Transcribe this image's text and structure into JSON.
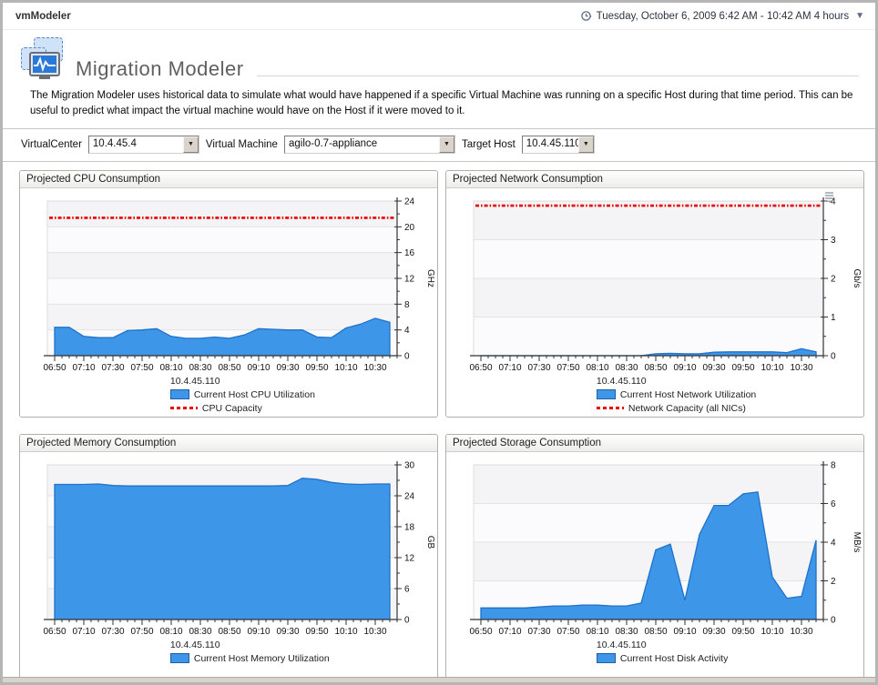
{
  "window": {
    "app_title": "vmModeler",
    "time_range": "Tuesday, October 6, 2009 6:42 AM - 10:42 AM 4 hours"
  },
  "page": {
    "title": "Migration Modeler",
    "description": "The Migration Modeler uses historical data to simulate what would have happened if a specific Virtual Machine was running on a specific Host during that time period. This can be useful to predict what impact the virtual machine would have on the Host if it were moved to it."
  },
  "filters": {
    "virtualcenter": {
      "label": "VirtualCenter",
      "value": "10.4.45.4"
    },
    "virtual_machine": {
      "label": "Virtual Machine",
      "value": "agilo-0.7-appliance"
    },
    "target_host": {
      "label": "Target Host",
      "value": "10.4.45.110"
    }
  },
  "colors": {
    "area_fill": "#3e96e8",
    "area_stroke": "#1f72c8",
    "capacity": "#e60000",
    "grid": "#e3e3e7",
    "band_a": "#f4f4f6",
    "band_b": "#fbfbfd",
    "axis": "#333333"
  },
  "chart_data": [
    {
      "type": "area",
      "title": "Projected CPU Consumption",
      "unit": "GHz",
      "ylim": [
        0,
        24
      ],
      "ytick_major": 4,
      "ytick_minor": 2,
      "x_tick_labels": [
        "06:50",
        "07:10",
        "07:30",
        "07:50",
        "08:10",
        "08:30",
        "08:50",
        "09:10",
        "09:30",
        "09:50",
        "10:10",
        "10:30"
      ],
      "x": [
        "06:50",
        "07:00",
        "07:10",
        "07:20",
        "07:30",
        "07:40",
        "07:50",
        "08:00",
        "08:10",
        "08:20",
        "08:30",
        "08:40",
        "08:50",
        "09:00",
        "09:10",
        "09:20",
        "09:30",
        "09:40",
        "09:50",
        "10:00",
        "10:10",
        "10:20",
        "10:30",
        "10:40"
      ],
      "y": [
        4.4,
        4.4,
        3.0,
        2.8,
        2.8,
        3.9,
        4.0,
        4.2,
        3.0,
        2.7,
        2.7,
        2.9,
        2.7,
        3.2,
        4.2,
        4.1,
        4.0,
        4.0,
        2.9,
        2.8,
        4.3,
        4.9,
        5.8,
        5.2
      ],
      "capacity": {
        "value": 21.4,
        "label": "CPU Capacity"
      },
      "host": "10.4.45.110",
      "series_label": "Current Host CPU Utilization",
      "has_menu_icon": false
    },
    {
      "type": "area",
      "title": "Projected Network Consumption",
      "unit": "Gb/s",
      "ylim": [
        0,
        4
      ],
      "ytick_major": 1,
      "ytick_minor": 0.5,
      "x_tick_labels": [
        "06:50",
        "07:10",
        "07:30",
        "07:50",
        "08:10",
        "08:30",
        "08:50",
        "09:10",
        "09:30",
        "09:50",
        "10:10",
        "10:30"
      ],
      "x": [
        "06:50",
        "07:00",
        "07:10",
        "07:20",
        "07:30",
        "07:40",
        "07:50",
        "08:00",
        "08:10",
        "08:20",
        "08:30",
        "08:40",
        "08:50",
        "09:00",
        "09:10",
        "09:20",
        "09:30",
        "09:40",
        "09:50",
        "10:00",
        "10:10",
        "10:20",
        "10:30",
        "10:40"
      ],
      "y": [
        0,
        0,
        0,
        0,
        0,
        0,
        0,
        0,
        0,
        0,
        0,
        0,
        0.05,
        0.06,
        0.05,
        0.05,
        0.09,
        0.1,
        0.1,
        0.1,
        0.1,
        0.08,
        0.18,
        0.1
      ],
      "capacity": {
        "value": 3.88,
        "label": "Network Capacity (all NICs)"
      },
      "host": "10.4.45.110",
      "series_label": "Current Host Network Utilization",
      "has_menu_icon": true
    },
    {
      "type": "area",
      "title": "Projected Memory Consumption",
      "unit": "GB",
      "ylim": [
        0,
        30
      ],
      "ytick_major": 6,
      "ytick_minor": 3,
      "x_tick_labels": [
        "06:50",
        "07:10",
        "07:30",
        "07:50",
        "08:10",
        "08:30",
        "08:50",
        "09:10",
        "09:30",
        "09:50",
        "10:10",
        "10:30"
      ],
      "x": [
        "06:50",
        "07:00",
        "07:10",
        "07:20",
        "07:30",
        "07:40",
        "07:50",
        "08:00",
        "08:10",
        "08:20",
        "08:30",
        "08:40",
        "08:50",
        "09:00",
        "09:10",
        "09:20",
        "09:30",
        "09:40",
        "09:50",
        "10:00",
        "10:10",
        "10:20",
        "10:30",
        "10:40"
      ],
      "y": [
        26.2,
        26.2,
        26.2,
        26.3,
        26.0,
        25.9,
        25.9,
        25.9,
        25.9,
        25.9,
        25.9,
        25.9,
        25.9,
        25.9,
        25.9,
        25.9,
        26.0,
        27.4,
        27.2,
        26.6,
        26.3,
        26.2,
        26.3,
        26.3
      ],
      "capacity": null,
      "host": "10.4.45.110",
      "series_label": "Current Host Memory Utilization",
      "has_menu_icon": false
    },
    {
      "type": "area",
      "title": "Projected Storage Consumption",
      "unit": "MB/s",
      "ylim": [
        0,
        8
      ],
      "ytick_major": 2,
      "ytick_minor": 1,
      "x_tick_labels": [
        "06:50",
        "07:10",
        "07:30",
        "07:50",
        "08:10",
        "08:30",
        "08:50",
        "09:10",
        "09:30",
        "09:50",
        "10:10",
        "10:30"
      ],
      "x": [
        "06:50",
        "07:00",
        "07:10",
        "07:20",
        "07:30",
        "07:40",
        "07:50",
        "08:00",
        "08:10",
        "08:20",
        "08:30",
        "08:40",
        "08:50",
        "09:00",
        "09:10",
        "09:20",
        "09:30",
        "09:40",
        "09:50",
        "10:00",
        "10:10",
        "10:20",
        "10:30",
        "10:40"
      ],
      "y": [
        0.6,
        0.6,
        0.6,
        0.6,
        0.65,
        0.7,
        0.7,
        0.75,
        0.75,
        0.7,
        0.7,
        0.85,
        3.6,
        3.9,
        1.0,
        4.4,
        5.9,
        5.9,
        6.5,
        6.6,
        2.2,
        1.1,
        1.2,
        4.1
      ],
      "capacity": null,
      "host": "10.4.45.110",
      "series_label": "Current Host Disk Activity",
      "has_menu_icon": false
    }
  ]
}
